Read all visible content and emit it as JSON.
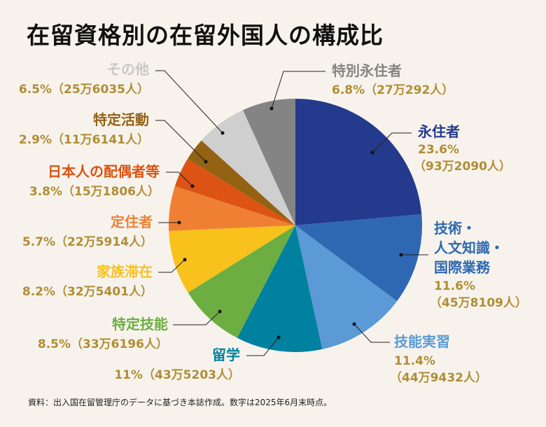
{
  "title": "在留資格別の在留外国人の構成比",
  "source": "資料：出入国在留管理庁のデータに基づき本誌作成。数字は2025年6月末時点。",
  "chart_data": {
    "type": "pie",
    "title": "在留資格別の在留外国人の構成比",
    "start": "top",
    "direction": "clockwise",
    "background": "#f7f3ec",
    "value_color": "#b08d35",
    "slices": [
      {
        "name": "永住者",
        "name_lines": [
          "永住者"
        ],
        "percent": 23.6,
        "percent_label": "23.6%",
        "count_label": "（93万2090人）",
        "color": "#243a8c"
      },
      {
        "name": "技術・人文知識・国際業務",
        "name_lines": [
          "技術・",
          "人文知識・",
          "国際業務"
        ],
        "percent": 11.6,
        "percent_label": "11.6%",
        "count_label": "（45万8109人）",
        "color": "#2f68b2"
      },
      {
        "name": "技能実習",
        "name_lines": [
          "技能実習"
        ],
        "percent": 11.4,
        "percent_label": "11.4%",
        "count_label": "（44万9432人）",
        "color": "#5b9ad6"
      },
      {
        "name": "留学",
        "name_lines": [
          "留学"
        ],
        "percent": 11,
        "percent_label": "11%",
        "count_label": "（43万5203人）",
        "color": "#00819f"
      },
      {
        "name": "特定技能",
        "name_lines": [
          "特定技能"
        ],
        "percent": 8.5,
        "percent_label": "8.5%",
        "count_label": "（33万6196人）",
        "color": "#6cae42"
      },
      {
        "name": "家族滞在",
        "name_lines": [
          "家族滞在"
        ],
        "percent": 8.2,
        "percent_label": "8.2%",
        "count_label": "（32万5401人）",
        "color": "#f8c11c"
      },
      {
        "name": "定住者",
        "name_lines": [
          "定住者"
        ],
        "percent": 5.7,
        "percent_label": "5.7%",
        "count_label": "（22万5914人）",
        "color": "#ef8033"
      },
      {
        "name": "日本人の配偶者等",
        "name_lines": [
          "日本人の配偶者等"
        ],
        "percent": 3.8,
        "percent_label": "3.8%",
        "count_label": "（15万1806人）",
        "color": "#dc5313"
      },
      {
        "name": "特定活動",
        "name_lines": [
          "特定活動"
        ],
        "percent": 2.9,
        "percent_label": "2.9%",
        "count_label": "（11万6141人）",
        "color": "#946213"
      },
      {
        "name": "その他",
        "name_lines": [
          "その他"
        ],
        "percent": 6.5,
        "percent_label": "6.5%",
        "count_label": "（25万6035人）",
        "color": "#cfcfcf"
      },
      {
        "name": "特別永住者",
        "name_lines": [
          "特別永住者"
        ],
        "percent": 6.8,
        "percent_label": "6.8%",
        "count_label": "（27万292人）",
        "color": "#848484"
      }
    ]
  }
}
